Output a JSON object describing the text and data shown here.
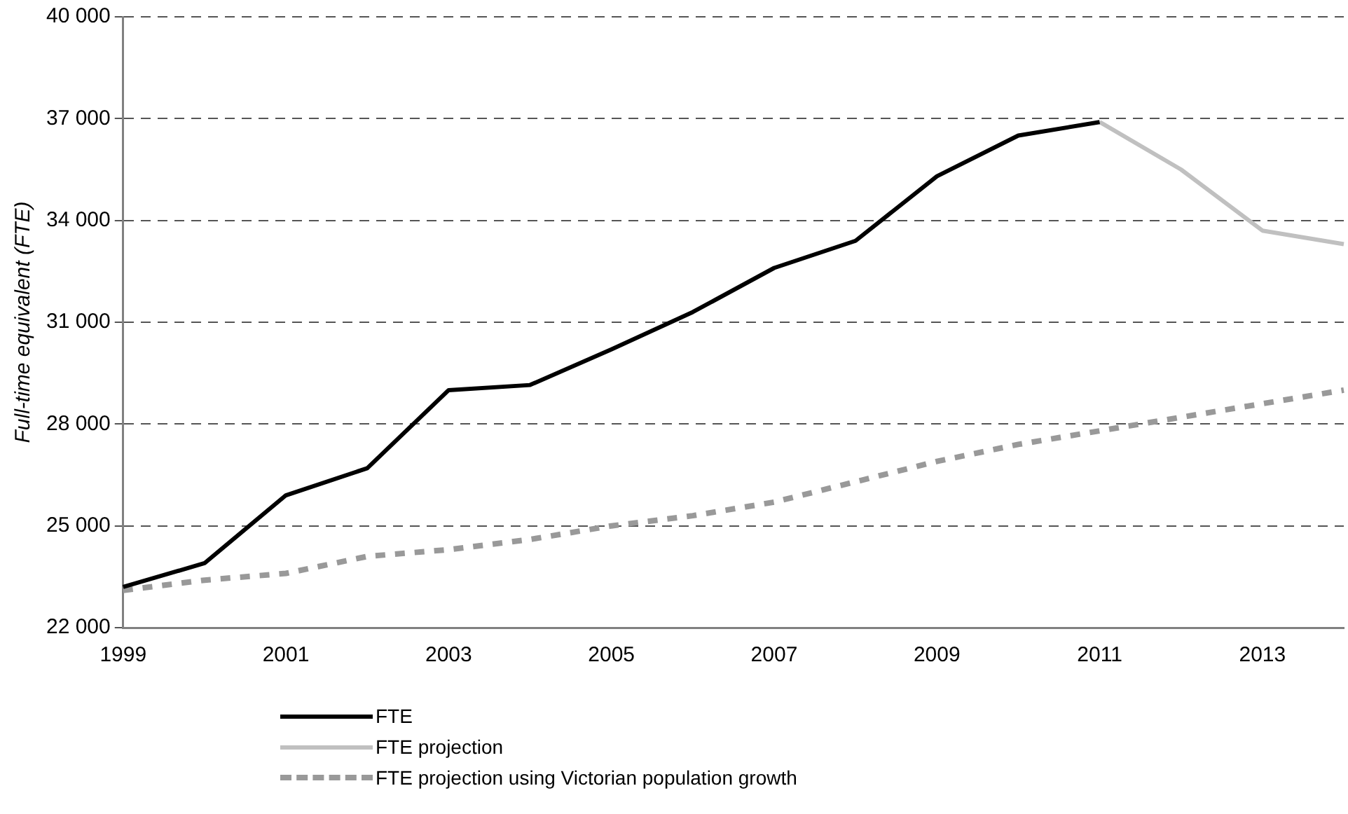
{
  "chart_data": {
    "type": "line",
    "ylabel": "Full-time equivalent (FTE)",
    "categories": [
      "1999",
      null,
      "2001",
      null,
      "2003",
      null,
      "2005",
      null,
      "2007",
      null,
      "2009",
      null,
      "2011",
      null,
      "2013",
      null
    ],
    "series": [
      {
        "name": "FTE",
        "color": "#000000",
        "line_style": "solid",
        "values": [
          23200,
          23900,
          25900,
          26700,
          29000,
          29150,
          30200,
          31300,
          32600,
          33400,
          35300,
          36500,
          36900,
          null,
          null,
          null
        ]
      },
      {
        "name": "FTE projection",
        "color": "#c0c0c0",
        "line_style": "solid",
        "values": [
          null,
          null,
          null,
          null,
          null,
          null,
          null,
          null,
          null,
          null,
          null,
          null,
          36900,
          35500,
          33700,
          33300
        ]
      },
      {
        "name": "FTE projection using Victorian population growth",
        "color": "#999999",
        "line_style": "dashed",
        "values": [
          23100,
          23400,
          23600,
          24100,
          24300,
          24600,
          25000,
          25300,
          25700,
          26300,
          26900,
          27400,
          27800,
          28200,
          28600,
          29000
        ]
      }
    ],
    "ylim": [
      22000,
      40000
    ],
    "yticks": [
      {
        "value": 22000,
        "label": "22 000"
      },
      {
        "value": 25000,
        "label": "25 000"
      },
      {
        "value": 28000,
        "label": "28 000"
      },
      {
        "value": 31000,
        "label": "31 000"
      },
      {
        "value": 34000,
        "label": "34 000"
      },
      {
        "value": 37000,
        "label": "37 000"
      },
      {
        "value": 40000,
        "label": "40 000"
      }
    ],
    "grid": "y",
    "legend": "bottom",
    "marker": "none"
  }
}
